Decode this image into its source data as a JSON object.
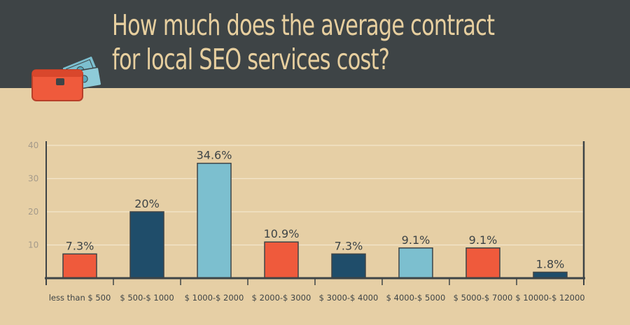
{
  "header": {
    "title_lines": [
      "How much does the average contract",
      "for local SEO services cost?"
    ],
    "icon": "wallet-with-cash-icon"
  },
  "colors": {
    "header_bg": "#3e4446",
    "page_bg": "#e6cfa5",
    "title": "#e7cf9f",
    "orange": "#ef5a3c",
    "navy": "#1f4d6a",
    "light_blue": "#7cbfcf"
  },
  "chart_data": {
    "type": "bar",
    "title": "How much does the average contract for local SEO services cost?",
    "xlabel": "",
    "ylabel": "",
    "ylim": [
      0,
      40
    ],
    "yticks": [
      10,
      20,
      30,
      40
    ],
    "grid": true,
    "legend": "none",
    "categories": [
      "less than $ 500",
      "$ 500-$ 1000",
      "$ 1000-$ 2000",
      "$ 2000-$ 3000",
      "$ 3000-$ 4000",
      "$ 4000-$ 5000",
      "$ 5000-$ 7000",
      "$ 10000-$ 12000"
    ],
    "values": [
      7.3,
      20,
      34.6,
      10.9,
      7.3,
      9.1,
      9.1,
      1.8
    ],
    "labels": [
      "7.3%",
      "20%",
      "34.6%",
      "10.9%",
      "7.3%",
      "9.1%",
      "9.1%",
      "1.8%"
    ],
    "bar_colors": [
      "#ef5a3c",
      "#1f4d6a",
      "#7cbfcf",
      "#ef5a3c",
      "#1f4d6a",
      "#7cbfcf",
      "#ef5a3c",
      "#1f4d6a"
    ]
  }
}
